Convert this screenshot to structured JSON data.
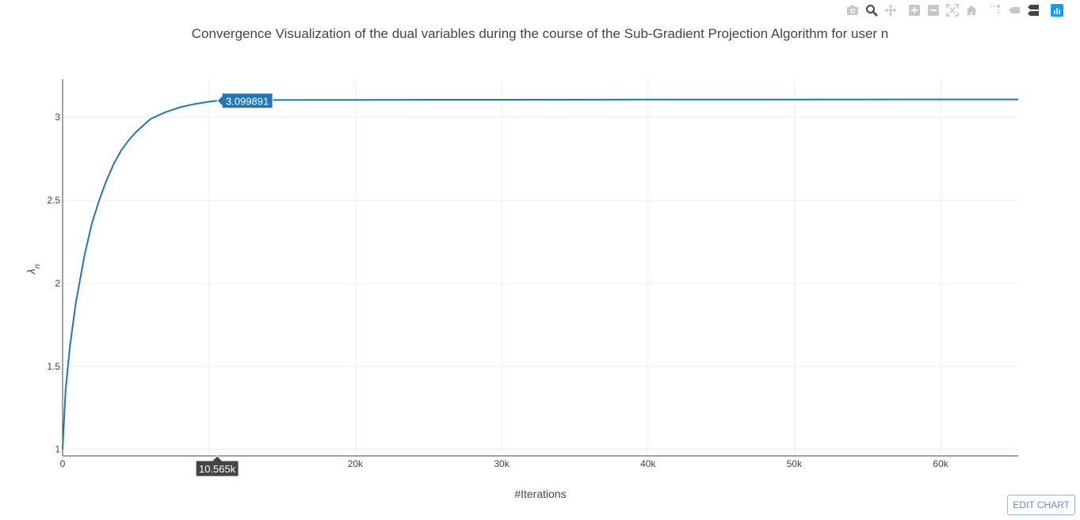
{
  "modebar": {
    "buttons": [
      {
        "name": "camera-icon"
      },
      {
        "name": "zoom-icon"
      },
      {
        "name": "pan-icon"
      },
      {
        "name": "zoom-in-icon"
      },
      {
        "name": "zoom-out-icon"
      },
      {
        "name": "autoscale-icon"
      },
      {
        "name": "reset-axes-icon"
      },
      {
        "name": "spike-lines-icon"
      },
      {
        "name": "hover-closest-icon"
      },
      {
        "name": "hover-compare-icon"
      },
      {
        "name": "plotly-logo-icon"
      }
    ]
  },
  "edit_chart_label": "EDIT CHART",
  "colors": {
    "line": "#1f77b4",
    "hover_x_bg": "#444444",
    "grid": "#eeeeee"
  },
  "chart_data": {
    "type": "line",
    "title": "Convergence Visualization of the dual variables during the course of the Sub-Gradient Projection Algorithm for user n",
    "xlabel": "#Iterations",
    "ylabel": "λn",
    "xlim": [
      0,
      65300
    ],
    "ylim": [
      0.96,
      3.23
    ],
    "grid": true,
    "x_ticks": [
      {
        "value": 0,
        "label": "0"
      },
      {
        "value": 10000,
        "label": "10k"
      },
      {
        "value": 20000,
        "label": "20k"
      },
      {
        "value": 30000,
        "label": "30k"
      },
      {
        "value": 40000,
        "label": "40k"
      },
      {
        "value": 50000,
        "label": "50k"
      },
      {
        "value": 60000,
        "label": "60k"
      }
    ],
    "y_ticks": [
      {
        "value": 1,
        "label": "1"
      },
      {
        "value": 1.5,
        "label": "1.5"
      },
      {
        "value": 2,
        "label": "2"
      },
      {
        "value": 2.5,
        "label": "2.5"
      },
      {
        "value": 3,
        "label": "3"
      }
    ],
    "series": [
      {
        "x": [
          0,
          200,
          500,
          900,
          1500,
          2000,
          2500,
          3000,
          3500,
          4000,
          4500,
          5000,
          6000,
          7000,
          8000,
          9000,
          10000,
          10565,
          12000,
          14000,
          17000,
          20000,
          25000,
          30000,
          40000,
          50000,
          60000,
          65300
        ],
        "y": [
          1.0,
          1.35,
          1.62,
          1.88,
          2.17,
          2.36,
          2.5,
          2.62,
          2.72,
          2.8,
          2.86,
          2.91,
          2.99,
          3.03,
          3.06,
          3.08,
          3.094,
          3.099891,
          3.102,
          3.104,
          3.105,
          3.105,
          3.106,
          3.106,
          3.107,
          3.107,
          3.108,
          3.108
        ]
      }
    ],
    "hover": {
      "x": 10565,
      "y": 3.099891,
      "x_label": "10.565k",
      "y_label": "3.099891"
    }
  }
}
